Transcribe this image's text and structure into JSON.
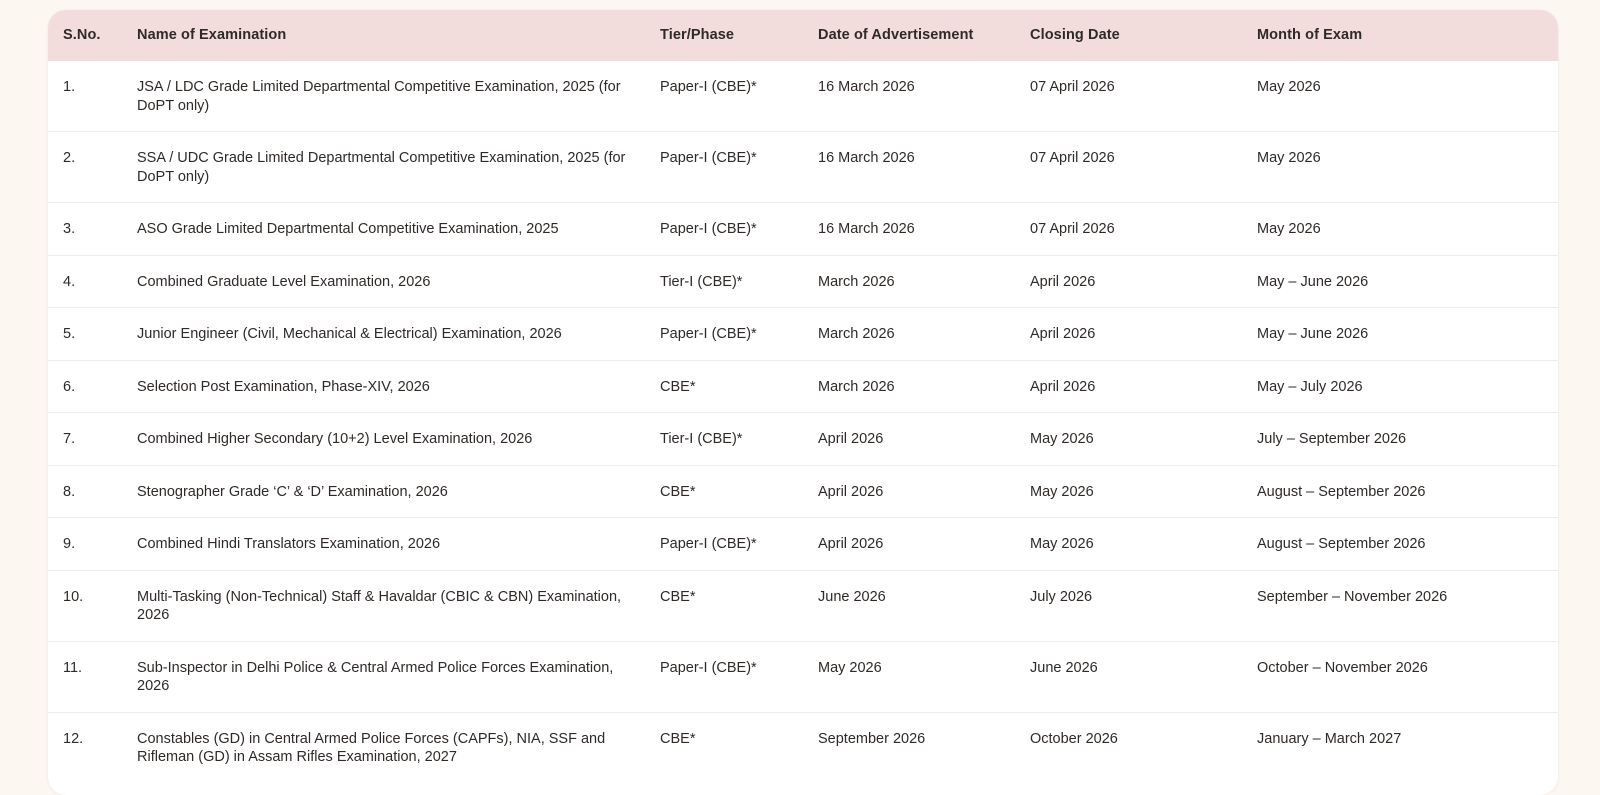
{
  "table": {
    "columns": [
      "S.No.",
      "Name of Examination",
      "Tier/Phase",
      "Date of Advertisement",
      "Closing Date",
      "Month of Exam"
    ],
    "rows": [
      {
        "sno": "1.",
        "name": "JSA / LDC Grade Limited Departmental Competitive Examination, 2025 (for DoPT only)",
        "tier": "Paper-I (CBE)*",
        "advert": "16 March 2026",
        "closing": "07 April 2026",
        "month": "May 2026"
      },
      {
        "sno": "2.",
        "name": "SSA / UDC Grade Limited Departmental Competitive Examination, 2025 (for DoPT only)",
        "tier": "Paper-I (CBE)*",
        "advert": "16 March 2026",
        "closing": "07 April 2026",
        "month": "May 2026"
      },
      {
        "sno": "3.",
        "name": "ASO Grade Limited Departmental Competitive Examination, 2025",
        "tier": "Paper-I (CBE)*",
        "advert": "16 March 2026",
        "closing": "07 April 2026",
        "month": "May 2026"
      },
      {
        "sno": "4.",
        "name": "Combined Graduate Level Examination, 2026",
        "tier": "Tier-I (CBE)*",
        "advert": "March 2026",
        "closing": "April 2026",
        "month": "May – June 2026"
      },
      {
        "sno": "5.",
        "name": "Junior Engineer (Civil, Mechanical & Electrical) Examination, 2026",
        "tier": "Paper-I (CBE)*",
        "advert": "March 2026",
        "closing": "April 2026",
        "month": "May – June 2026"
      },
      {
        "sno": "6.",
        "name": "Selection Post Examination, Phase-XIV, 2026",
        "tier": "CBE*",
        "advert": "March 2026",
        "closing": "April 2026",
        "month": "May – July 2026"
      },
      {
        "sno": "7.",
        "name": "Combined Higher Secondary (10+2) Level Examination, 2026",
        "tier": "Tier-I (CBE)*",
        "advert": "April 2026",
        "closing": "May 2026",
        "month": "July – September 2026"
      },
      {
        "sno": "8.",
        "name": "Stenographer Grade ‘C’ & ‘D’ Examination, 2026",
        "tier": "CBE*",
        "advert": "April 2026",
        "closing": "May 2026",
        "month": "August – September 2026"
      },
      {
        "sno": "9.",
        "name": "Combined Hindi Translators Examination, 2026",
        "tier": "Paper-I (CBE)*",
        "advert": "April 2026",
        "closing": "May 2026",
        "month": "August – September 2026"
      },
      {
        "sno": "10.",
        "name": "Multi-Tasking (Non-Technical) Staff & Havaldar (CBIC & CBN) Examination, 2026",
        "tier": "CBE*",
        "advert": "June 2026",
        "closing": "July 2026",
        "month": "September – November 2026"
      },
      {
        "sno": "11.",
        "name": "Sub-Inspector in Delhi Police & Central Armed Police Forces Examination, 2026",
        "tier": "Paper-I (CBE)*",
        "advert": "May 2026",
        "closing": "June 2026",
        "month": "October – November 2026"
      },
      {
        "sno": "12.",
        "name": "Constables (GD) in Central Armed Police Forces (CAPFs), NIA, SSF and Rifleman (GD) in Assam Rifles Examination, 2027",
        "tier": "CBE*",
        "advert": "September 2026",
        "closing": "October 2026",
        "month": "January – March 2027"
      }
    ],
    "colors": {
      "page_bg": "#fdf7f2",
      "card_bg": "#ffffff",
      "header_bg": "#f2dcdc",
      "divider": "#ededed",
      "text": "#2f2a27"
    }
  }
}
